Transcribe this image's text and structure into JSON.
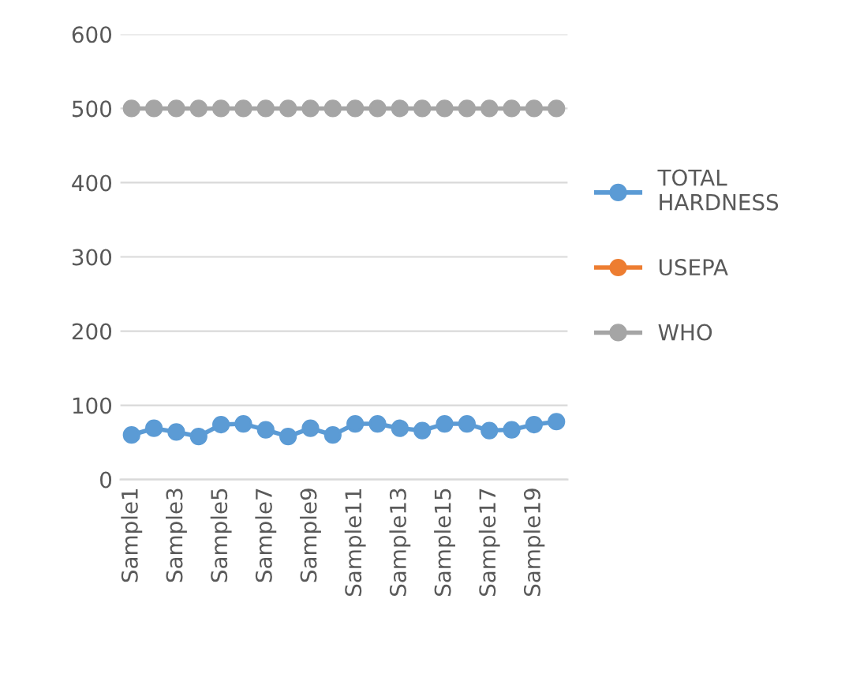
{
  "chart_data": {
    "type": "line",
    "categories": [
      "Sample1",
      null,
      "Sample3",
      null,
      "Sample5",
      null,
      "Sample7",
      null,
      "Sample9",
      null,
      "Sample11",
      null,
      "Sample13",
      null,
      "Sample15",
      null,
      "Sample17",
      null,
      "Sample19",
      null
    ],
    "series": [
      {
        "name": "TOTAL\nHARDNESS",
        "color": "#5b9bd5",
        "values": [
          60,
          69,
          64,
          58,
          74,
          75,
          67,
          58,
          69,
          60,
          75,
          75,
          69,
          66,
          75,
          75,
          66,
          67,
          74,
          78
        ]
      },
      {
        "name": "USEPA",
        "color": "#ed7d31",
        "values": [
          null,
          null,
          null,
          null,
          null,
          null,
          null,
          null,
          null,
          null,
          null,
          null,
          null,
          null,
          null,
          null,
          null,
          null,
          null,
          null
        ]
      },
      {
        "name": "WHO",
        "color": "#a5a5a5",
        "values": [
          500,
          500,
          500,
          500,
          500,
          500,
          500,
          500,
          500,
          500,
          500,
          500,
          500,
          500,
          500,
          500,
          500,
          500,
          500,
          500
        ]
      }
    ],
    "ylim": [
      0,
      600
    ],
    "yticks": [
      0,
      100,
      200,
      300,
      400,
      500,
      600
    ],
    "grid": "y",
    "legend": "right",
    "marker": "circle",
    "line_style": "solid"
  }
}
